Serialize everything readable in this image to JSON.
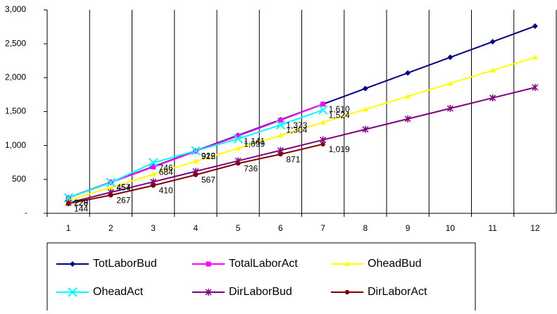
{
  "chart_data": {
    "type": "line",
    "categories": [
      "1",
      "2",
      "3",
      "4",
      "5",
      "6",
      "7",
      "8",
      "9",
      "10",
      "11",
      "12"
    ],
    "ylim": [
      0,
      3000
    ],
    "yticks": [
      {
        "value": 0,
        "label": "-"
      },
      500,
      {
        "value": 1000,
        "label": "1,000"
      },
      {
        "value": 1500,
        "label": "1,500"
      },
      {
        "value": 2000,
        "label": "2,000"
      },
      {
        "value": 2500,
        "label": "2,500"
      },
      {
        "value": 3000,
        "label": "3,000"
      }
    ],
    "grid": "vertical",
    "legend": "bottom",
    "series": [
      {
        "name": "TotLaborBud",
        "color": "#000080",
        "marker": "diamond",
        "values": [
          230,
          460,
          690,
          920,
          1150,
          1380,
          1610,
          1840,
          2070,
          2300,
          2530,
          2760
        ]
      },
      {
        "name": "TotalLaborAct",
        "color": "#FF00FF",
        "marker": "square",
        "values": [
          228,
          457,
          684,
          915,
          1141,
          1373,
          1610,
          null,
          null,
          null,
          null,
          null
        ],
        "value_labels": [
          "228",
          "457",
          "684",
          "915",
          "1,141",
          "1,373",
          "1,610",
          null,
          null,
          null,
          null,
          null
        ]
      },
      {
        "name": "OheadBud",
        "color": "#FFFF00",
        "marker": "triangle",
        "values": [
          192,
          383,
          575,
          767,
          958,
          1150,
          1342,
          1533,
          1725,
          1917,
          2108,
          2300
        ]
      },
      {
        "name": "OheadAct",
        "color": "#00FFFF",
        "marker": "x",
        "values": [
          229,
          454,
          746,
          922,
          1099,
          1304,
          1524,
          null,
          null,
          null,
          null,
          null
        ],
        "value_labels": [
          "229",
          "454",
          "746",
          "922",
          "1,099",
          "1,304",
          "1,524",
          null,
          null,
          null,
          null,
          null
        ]
      },
      {
        "name": "DirLaborBud",
        "color": "#800080",
        "marker": "star",
        "values": [
          155,
          310,
          464,
          619,
          774,
          928,
          1083,
          1238,
          1392,
          1547,
          1702,
          1856
        ]
      },
      {
        "name": "DirLaborAct",
        "color": "#800000",
        "marker": "circle",
        "values": [
          144,
          267,
          410,
          567,
          736,
          871,
          1019,
          null,
          null,
          null,
          null,
          null
        ],
        "value_labels": [
          "144",
          "267",
          "410",
          "567",
          "736",
          "871",
          "1,019",
          null,
          null,
          null,
          null,
          null
        ]
      }
    ]
  }
}
